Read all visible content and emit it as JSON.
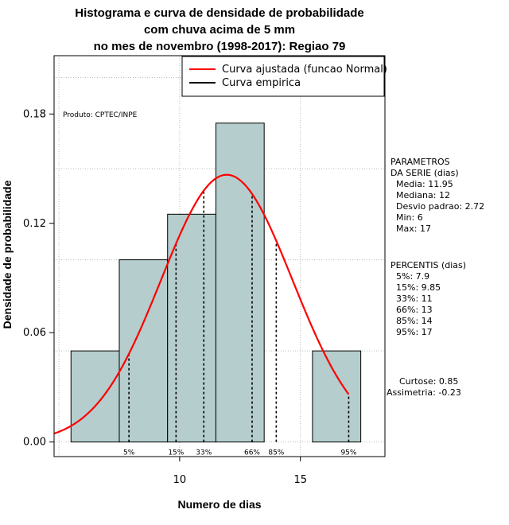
{
  "chart_data": {
    "type": "histogram",
    "title_lines": [
      "Histograma e curva de densidade de probabilidade",
      "com chuva acima de 5 mm",
      "no mes de novembro (1998-2017): Regiao 79"
    ],
    "xlabel": "Numero de dias",
    "ylabel": "Densidade de probabilidade",
    "xlim": [
      4.8,
      18.5
    ],
    "ylim": [
      -0.008,
      0.212
    ],
    "x_ticks": [
      10,
      15
    ],
    "y_ticks": [
      0.0,
      0.06,
      0.12,
      0.18
    ],
    "y_tick_labels": [
      "0.00",
      "0.06",
      "0.12",
      "0.18"
    ],
    "grid_x": [
      5,
      10,
      15
    ],
    "grid_y": [
      0.0,
      0.05,
      0.1,
      0.15,
      0.2
    ],
    "bins": [
      {
        "from": 5.5,
        "to": 7.5,
        "density": 0.05
      },
      {
        "from": 7.5,
        "to": 9.5,
        "density": 0.1
      },
      {
        "from": 9.5,
        "to": 11.5,
        "density": 0.125
      },
      {
        "from": 11.5,
        "to": 13.5,
        "density": 0.175
      },
      {
        "from": 13.5,
        "to": 15.5,
        "density": 0.0
      },
      {
        "from": 15.5,
        "to": 17.5,
        "density": 0.05
      }
    ],
    "normal_fit": {
      "mean": 11.95,
      "sd": 2.72,
      "x_from": 4.8,
      "x_to": 17
    },
    "percentiles": [
      {
        "label": "5%",
        "x": 7.9
      },
      {
        "label": "15%",
        "x": 9.85
      },
      {
        "label": "33%",
        "x": 11
      },
      {
        "label": "66%",
        "x": 13
      },
      {
        "label": "85%",
        "x": 14
      },
      {
        "label": "95%",
        "x": 17
      }
    ],
    "legend": {
      "position": "top-right",
      "entries": [
        {
          "label": "Curva ajustada (funcao Normal)",
          "color": "#ff0000"
        },
        {
          "label": "Curva empirica",
          "color": "#000000"
        }
      ]
    },
    "credit": "Produto: CPTEC/INPE",
    "parametros": {
      "heading_1": "PARAMETROS",
      "heading_2": "DA SERIE (dias)",
      "lines": [
        "Media: 11.95",
        "Mediana: 12",
        "Desvio padrao: 2.72",
        "Min: 6",
        "Max: 17"
      ]
    },
    "percentis": {
      "heading": "PERCENTIS (dias)",
      "lines": [
        "5%: 7.9",
        "15%: 9.85",
        "33%: 11",
        "66%: 13",
        "85%: 14",
        "95%: 17"
      ]
    },
    "shape": {
      "curtose": "Curtose: 0.85",
      "assimetria": "Assimetria: -0.23"
    },
    "colors": {
      "bar_fill": "#b5cdcd",
      "bar_stroke": "#000000",
      "fit_curve": "#ff0000",
      "grid": "#bebebe",
      "percentile_line": "#000000"
    }
  }
}
